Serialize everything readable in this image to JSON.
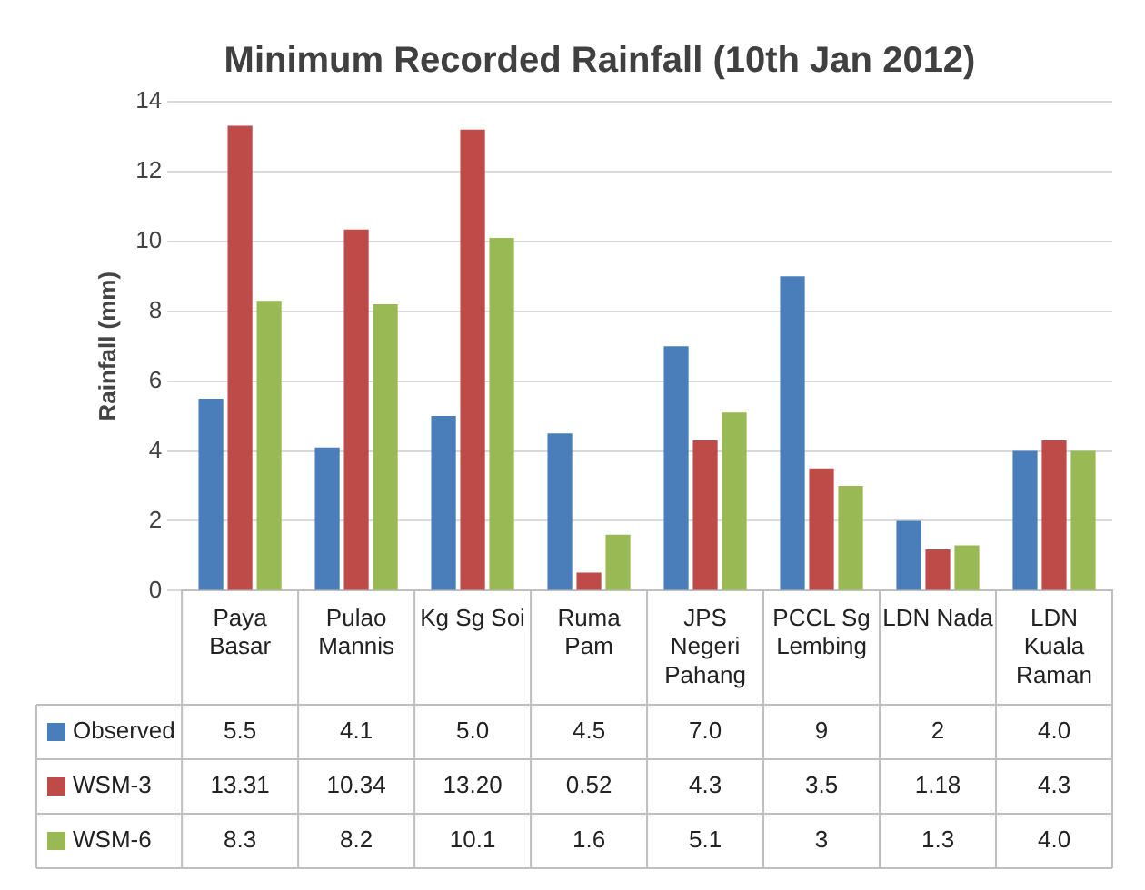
{
  "chart_data": {
    "type": "bar",
    "title": "Minimum Recorded Rainfall (10th Jan 2012)",
    "ylabel": "Rainfall (mm)",
    "categories": [
      "Paya Basar",
      "Pulao Mannis",
      "Kg Sg Soi",
      "Ruma Pam",
      "JPS Negeri Pahang",
      "PCCL  Sg Lembing",
      "LDN Nada",
      "LDN Kuala Raman"
    ],
    "series": [
      {
        "name": "Observed",
        "color": "#4a7ebb",
        "values": [
          5.5,
          4.1,
          5.0,
          4.5,
          7.0,
          9,
          2,
          4.0
        ],
        "value_labels": [
          "5.5",
          "4.1",
          "5.0",
          "4.5",
          "7.0",
          "9",
          "2",
          "4.0"
        ]
      },
      {
        "name": "WSM-3",
        "color": "#be4b48",
        "values": [
          13.31,
          10.34,
          13.2,
          0.52,
          4.3,
          3.5,
          1.18,
          4.3
        ],
        "value_labels": [
          "13.31",
          "10.34",
          "13.20",
          "0.52",
          "4.3",
          "3.5",
          "1.18",
          "4.3"
        ]
      },
      {
        "name": "WSM-6",
        "color": "#98b954",
        "values": [
          8.3,
          8.2,
          10.1,
          1.6,
          5.1,
          3,
          1.3,
          4.0
        ],
        "value_labels": [
          "8.3",
          "8.2",
          "10.1",
          "1.6",
          "5.1",
          "3",
          "1.3",
          "4.0"
        ]
      }
    ],
    "ylim": [
      0,
      14
    ],
    "yticks": [
      0,
      2,
      4,
      6,
      8,
      10,
      12,
      14
    ],
    "grid": "y",
    "legend": "bottom"
  }
}
